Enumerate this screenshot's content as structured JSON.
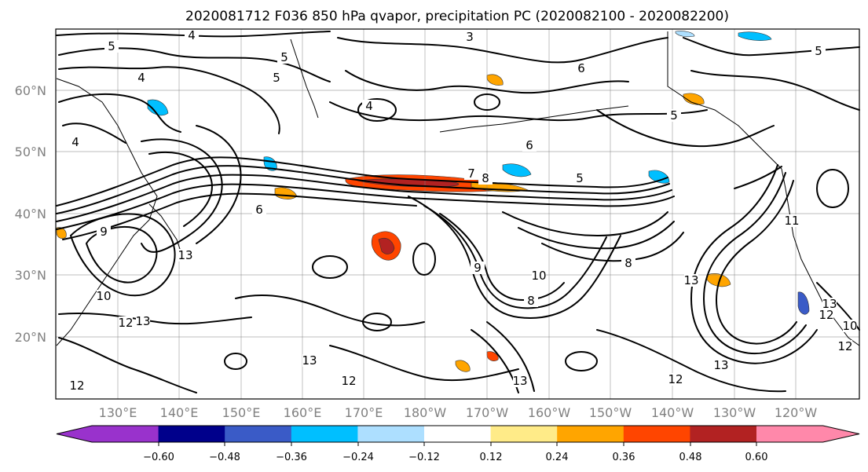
{
  "title": "2020081712 F036 850 hPa qvapor, precipitation PC (2020082100 - 2020082200)",
  "map": {
    "lat_labels": [
      "60°N",
      "50°N",
      "40°N",
      "30°N",
      "20°N"
    ],
    "lon_labels": [
      "130°E",
      "140°E",
      "150°E",
      "160°E",
      "170°E",
      "180°W",
      "170°W",
      "160°W",
      "150°W",
      "140°W",
      "130°W",
      "120°W"
    ],
    "grid_color": "#808080",
    "tick_label_color": "#808080"
  },
  "colorbar": {
    "colors": [
      "#9932CC",
      "#00008B",
      "#3A5BC7",
      "#00BFFF",
      "#ADDFFF",
      "#FFFFFF",
      "#FFEB88",
      "#FFA500",
      "#FF4500",
      "#B22222",
      "#FF88AA"
    ],
    "tick_labels": [
      "−0.60",
      "−0.48",
      "−0.36",
      "−0.24",
      "−0.12",
      "0.12",
      "0.24",
      "0.36",
      "0.48",
      "0.60"
    ]
  },
  "contour_labels": [
    "4",
    "5",
    "3",
    "5",
    "5",
    "4",
    "6",
    "5",
    "6",
    "4",
    "4",
    "5",
    "5",
    "6",
    "7",
    "8",
    "9",
    "13",
    "10",
    "12",
    "9",
    "10",
    "8",
    "8",
    "13",
    "12",
    "13",
    "12",
    "13",
    "13",
    "12",
    "13",
    "13",
    "12",
    "12",
    "11",
    "10"
  ],
  "shading_colors": {
    "orange": "#FFA500",
    "red": "#FF4500",
    "darkred": "#B22222",
    "yellow": "#FFEB88",
    "blue": "#00BFFF",
    "lightblue": "#ADDFFF",
    "darkblue": "#3A5BC7"
  }
}
